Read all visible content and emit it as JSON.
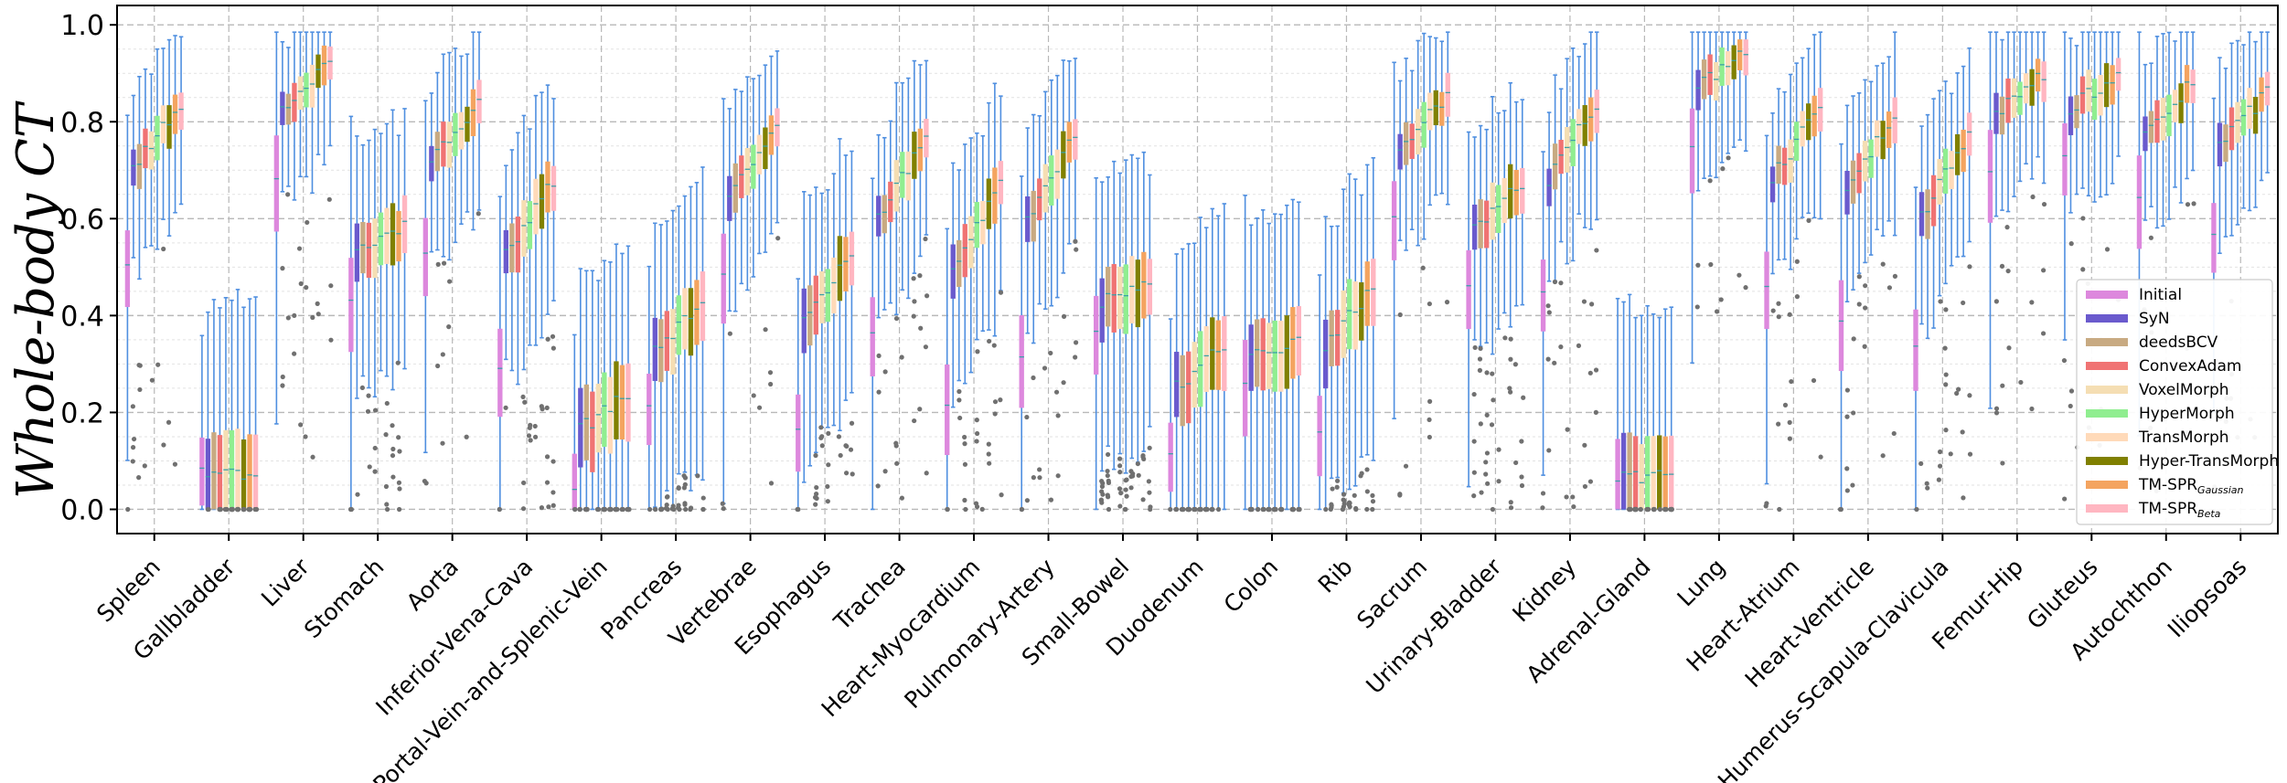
{
  "chart_data": {
    "type": "box",
    "title": "",
    "xlabel": "",
    "ylabel": "Whole-body CT",
    "ylim": [
      -0.05,
      1.04
    ],
    "yticks": [
      "0.0",
      "0.2",
      "0.4",
      "0.6",
      "0.8",
      "1.0"
    ],
    "grid": true,
    "legend_position": "lower-right",
    "categories": [
      "Spleen",
      "Gallbladder",
      "Liver",
      "Stomach",
      "Aorta",
      "Inferior-Vena-Cava",
      "Portal-Vein-and-Splenic-Vein",
      "Pancreas",
      "Vertebrae",
      "Esophagus",
      "Trachea",
      "Heart-Myocardium",
      "Pulmonary-Artery",
      "Small-Bowel",
      "Duodenum",
      "Colon",
      "Rib",
      "Sacrum",
      "Urinary-Bladder",
      "Kidney",
      "Adrenal-Gland",
      "Lung",
      "Heart-Atrium",
      "Heart-Ventricle",
      "Humerus-Scapula-Clavicula",
      "Femur-Hip",
      "Gluteus",
      "Autochthon",
      "Iliopsoas"
    ],
    "methods": [
      {
        "name": "Initial",
        "sub": "",
        "color": "#dd88dd"
      },
      {
        "name": "SyN",
        "sub": "",
        "color": "#6a5acd"
      },
      {
        "name": "deedsBCV",
        "sub": "",
        "color": "#c8aa82"
      },
      {
        "name": "ConvexAdam",
        "sub": "",
        "color": "#f07373"
      },
      {
        "name": "VoxelMorph",
        "sub": "",
        "color": "#f5deb3"
      },
      {
        "name": "HyperMorph",
        "sub": "",
        "color": "#90ee90"
      },
      {
        "name": "TransMorph",
        "sub": "",
        "color": "#ffdab9"
      },
      {
        "name": "Hyper-TransMorph",
        "sub": "",
        "color": "#808000"
      },
      {
        "name": "TM-SPR",
        "sub": "Gaussian",
        "color": "#f4a460"
      },
      {
        "name": "TM-SPR",
        "sub": "Beta",
        "color": "#ffb6c1"
      }
    ],
    "medians_initial": [
      0.5,
      0.08,
      0.68,
      0.44,
      0.52,
      0.3,
      0.05,
      0.2,
      0.48,
      0.18,
      0.35,
      0.2,
      0.32,
      0.38,
      0.12,
      0.25,
      0.15,
      0.6,
      0.45,
      0.44,
      0.06,
      0.75,
      0.46,
      0.4,
      0.34,
      0.7,
      0.72,
      0.64,
      0.58
    ],
    "medians_final": [
      0.84,
      0.07,
      0.92,
      0.59,
      0.84,
      0.68,
      0.24,
      0.42,
      0.78,
      0.53,
      0.77,
      0.68,
      0.78,
      0.46,
      0.34,
      0.35,
      0.46,
      0.85,
      0.67,
      0.84,
      0.07,
      0.95,
      0.83,
      0.82,
      0.78,
      0.9,
      0.9,
      0.88,
      0.86
    ]
  }
}
